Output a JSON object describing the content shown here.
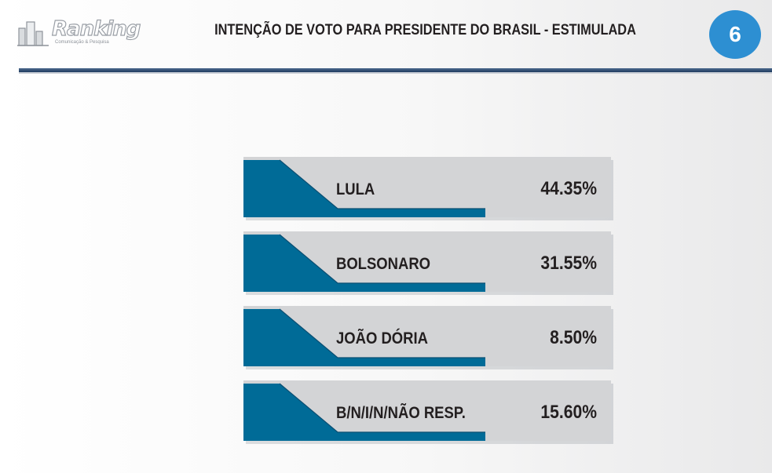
{
  "brand": {
    "name": "Ranking",
    "tagline": "Comunicação & Pesquisa"
  },
  "header": {
    "title": "INTENÇÃO DE VOTO PARA PRESIDENTE DO BRASIL - ESTIMULADA",
    "page_number": "6"
  },
  "colors": {
    "accent_blue": "#006b97",
    "dark_navy": "#1e3a5c",
    "badge_blue": "#2d8fd2",
    "card_gray": "#d3d4d6"
  },
  "chart_data": {
    "type": "bar",
    "title": "INTENÇÃO DE VOTO PARA PRESIDENTE DO BRASIL - ESTIMULADA",
    "categories": [
      "LULA",
      "BOLSONARO",
      "JOÃO DÓRIA",
      "B/N/I/N/NÃO RESP."
    ],
    "values": [
      44.35,
      31.55,
      8.5,
      15.6
    ],
    "value_labels": [
      "44.35%",
      "31.55%",
      "8.50%",
      "15.60%"
    ],
    "unit": "%"
  }
}
